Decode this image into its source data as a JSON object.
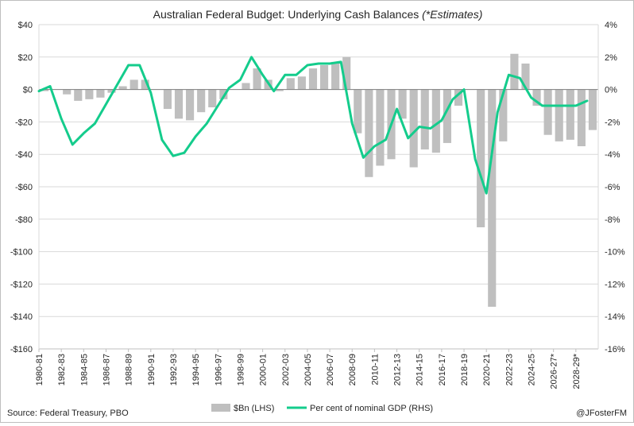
{
  "chart_data": {
    "type": "bar",
    "title": "Australian Federal Budget: Underlying Cash Balances",
    "title_suffix": "(*Estimates)",
    "source": "Source: Federal Treasury, PBO",
    "credit": "@JFosterFM",
    "x": [
      "1980-81",
      "1981-82",
      "1982-83",
      "1983-84",
      "1984-85",
      "1985-86",
      "1986-87",
      "1987-88",
      "1988-89",
      "1989-90",
      "1990-91",
      "1991-92",
      "1992-93",
      "1993-94",
      "1994-95",
      "1995-96",
      "1996-97",
      "1997-98",
      "1998-99",
      "1999-00",
      "2000-01",
      "2001-02",
      "2002-03",
      "2003-04",
      "2004-05",
      "2005-06",
      "2006-07",
      "2007-08",
      "2008-09",
      "2009-10",
      "2010-11",
      "2011-12",
      "2012-13",
      "2013-14",
      "2014-15",
      "2015-16",
      "2016-17",
      "2017-18",
      "2018-19",
      "2019-20",
      "2020-21",
      "2021-22",
      "2022-23",
      "2023-24",
      "2024-25",
      "2025-26",
      "2026-27*",
      "2027-28",
      "2028-29*",
      "2029-30"
    ],
    "x_tick_labels": [
      "1980-81",
      "1982-83",
      "1984-85",
      "1986-87",
      "1988-89",
      "1990-91",
      "1992-93",
      "1994-95",
      "1996-97",
      "1998-99",
      "2000-01",
      "2002-03",
      "2004-05",
      "2006-07",
      "2008-09",
      "2010-11",
      "2012-13",
      "2014-15",
      "2016-17",
      "2018-19",
      "2020-21",
      "2022-23",
      "2024-25",
      "2026-27*",
      "2028-29*"
    ],
    "series": [
      {
        "name": "$Bn (LHS)",
        "type": "bar",
        "axis": "left",
        "color": "#bfbfbf",
        "values": [
          -1,
          0,
          -3,
          -7,
          -6,
          -5,
          -2,
          2,
          6,
          6,
          0,
          -12,
          -18,
          -19,
          -14,
          -11,
          -6,
          0,
          4,
          13,
          6,
          -1,
          7,
          8,
          13,
          15,
          17,
          20,
          -27,
          -54,
          -47,
          -43,
          -18,
          -48,
          -37,
          -39,
          -33,
          -10,
          0,
          -85,
          -134,
          -32,
          22,
          16,
          -10,
          -28,
          -32,
          -31,
          -35,
          -25
        ]
      },
      {
        "name": "Per cent of nominal GDP (RHS)",
        "type": "line",
        "axis": "right",
        "color": "#14cc8c",
        "values": [
          -0.1,
          0.2,
          -1.8,
          -3.4,
          -2.7,
          -2.1,
          -0.9,
          0.3,
          1.5,
          1.5,
          -0.2,
          -3.1,
          -4.1,
          -3.9,
          -2.9,
          -2.1,
          -1.0,
          0.1,
          0.6,
          2.0,
          0.9,
          -0.1,
          0.9,
          0.9,
          1.5,
          1.6,
          1.6,
          1.7,
          -2.1,
          -4.2,
          -3.5,
          -3.1,
          -1.2,
          -3.0,
          -2.3,
          -2.4,
          -1.9,
          -0.6,
          0.0,
          -4.3,
          -6.4,
          -1.4,
          0.9,
          0.7,
          -0.5,
          -1.0,
          -1.0,
          -1.0,
          -1.0,
          -0.7
        ]
      }
    ],
    "y_left": {
      "label": "$Bn",
      "ylim": [
        -160,
        40
      ],
      "ticks": [
        40,
        20,
        0,
        -20,
        -40,
        -60,
        -80,
        -100,
        -120,
        -140,
        -160
      ],
      "tick_labels": [
        "$40",
        "$20",
        "$0",
        "-$20",
        "-$40",
        "-$60",
        "-$80",
        "-$100",
        "-$120",
        "-$140",
        "-$160"
      ]
    },
    "y_right": {
      "label": "%",
      "ylim": [
        -16,
        4
      ],
      "ticks": [
        4,
        2,
        0,
        -2,
        -4,
        -6,
        -8,
        -10,
        -12,
        -14,
        -16
      ],
      "tick_labels": [
        "4%",
        "2%",
        "0%",
        "-2%",
        "-4%",
        "-6%",
        "-8%",
        "-10%",
        "-12%",
        "-14%",
        "-16%"
      ]
    },
    "grid": true,
    "legend_position": "bottom",
    "legend": [
      {
        "label": "$Bn (LHS)",
        "marker": "bar",
        "color": "#bfbfbf"
      },
      {
        "label": "Per cent of nominal GDP (RHS)",
        "marker": "line",
        "color": "#14cc8c"
      }
    ]
  }
}
